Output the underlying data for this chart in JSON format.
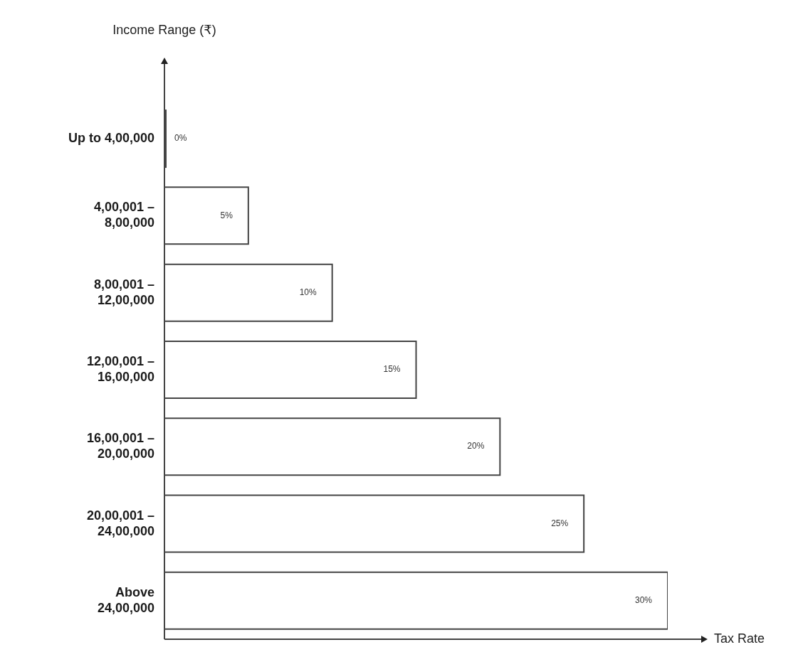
{
  "chart_data": {
    "type": "bar",
    "orientation": "horizontal",
    "xlabel": "Tax Rate",
    "ylabel": "Income Range (₹)",
    "categories": [
      "Up to 4,00,000",
      "4,00,001 –\n8,00,000",
      "8,00,001 –\n12,00,000",
      "12,00,001 –\n16,00,000",
      "16,00,001 –\n20,00,000",
      "20,00,001 –\n24,00,000",
      "Above\n24,00,000"
    ],
    "values": [
      0,
      5,
      10,
      15,
      20,
      25,
      30
    ],
    "value_labels": [
      "0%",
      "5%",
      "10%",
      "15%",
      "20%",
      "25%",
      "30%"
    ],
    "color": "#ffffff"
  }
}
